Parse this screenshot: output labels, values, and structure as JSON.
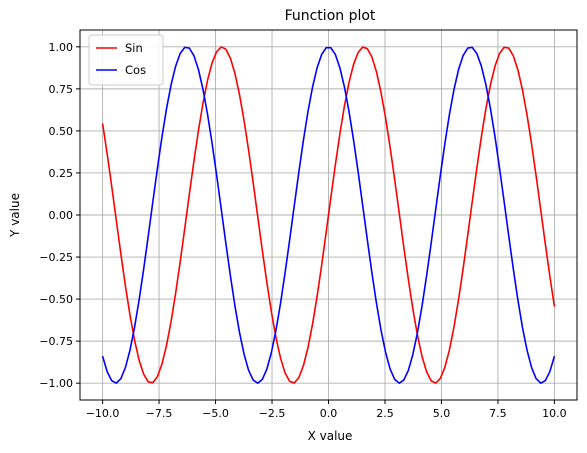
{
  "chart_data": {
    "type": "line",
    "title": "Function plot",
    "xlabel": "X value",
    "ylabel": "Y value",
    "xlim": [
      -11.0,
      11.0
    ],
    "ylim": [
      -1.1,
      1.1
    ],
    "grid": true,
    "legend_position": "top-left",
    "x_ticks": [
      -10.0,
      -7.5,
      -5.0,
      -2.5,
      0.0,
      2.5,
      5.0,
      7.5,
      10.0
    ],
    "x_tick_labels": [
      "−10.0",
      "−7.5",
      "−5.0",
      "−2.5",
      "0.0",
      "2.5",
      "5.0",
      "7.5",
      "10.0"
    ],
    "y_ticks": [
      -1.0,
      -0.75,
      -0.5,
      -0.25,
      0.0,
      0.25,
      0.5,
      0.75,
      1.0
    ],
    "y_tick_labels": [
      "−1.00",
      "−0.75",
      "−0.50",
      "−0.25",
      "0.00",
      "0.25",
      "0.50",
      "0.75",
      "1.00"
    ],
    "x_range": [
      -10.0,
      10.0
    ],
    "series": [
      {
        "name": "Sin",
        "function": "sin",
        "color": "#ff0000"
      },
      {
        "name": "Cos",
        "function": "cos",
        "color": "#0000ff"
      }
    ]
  }
}
